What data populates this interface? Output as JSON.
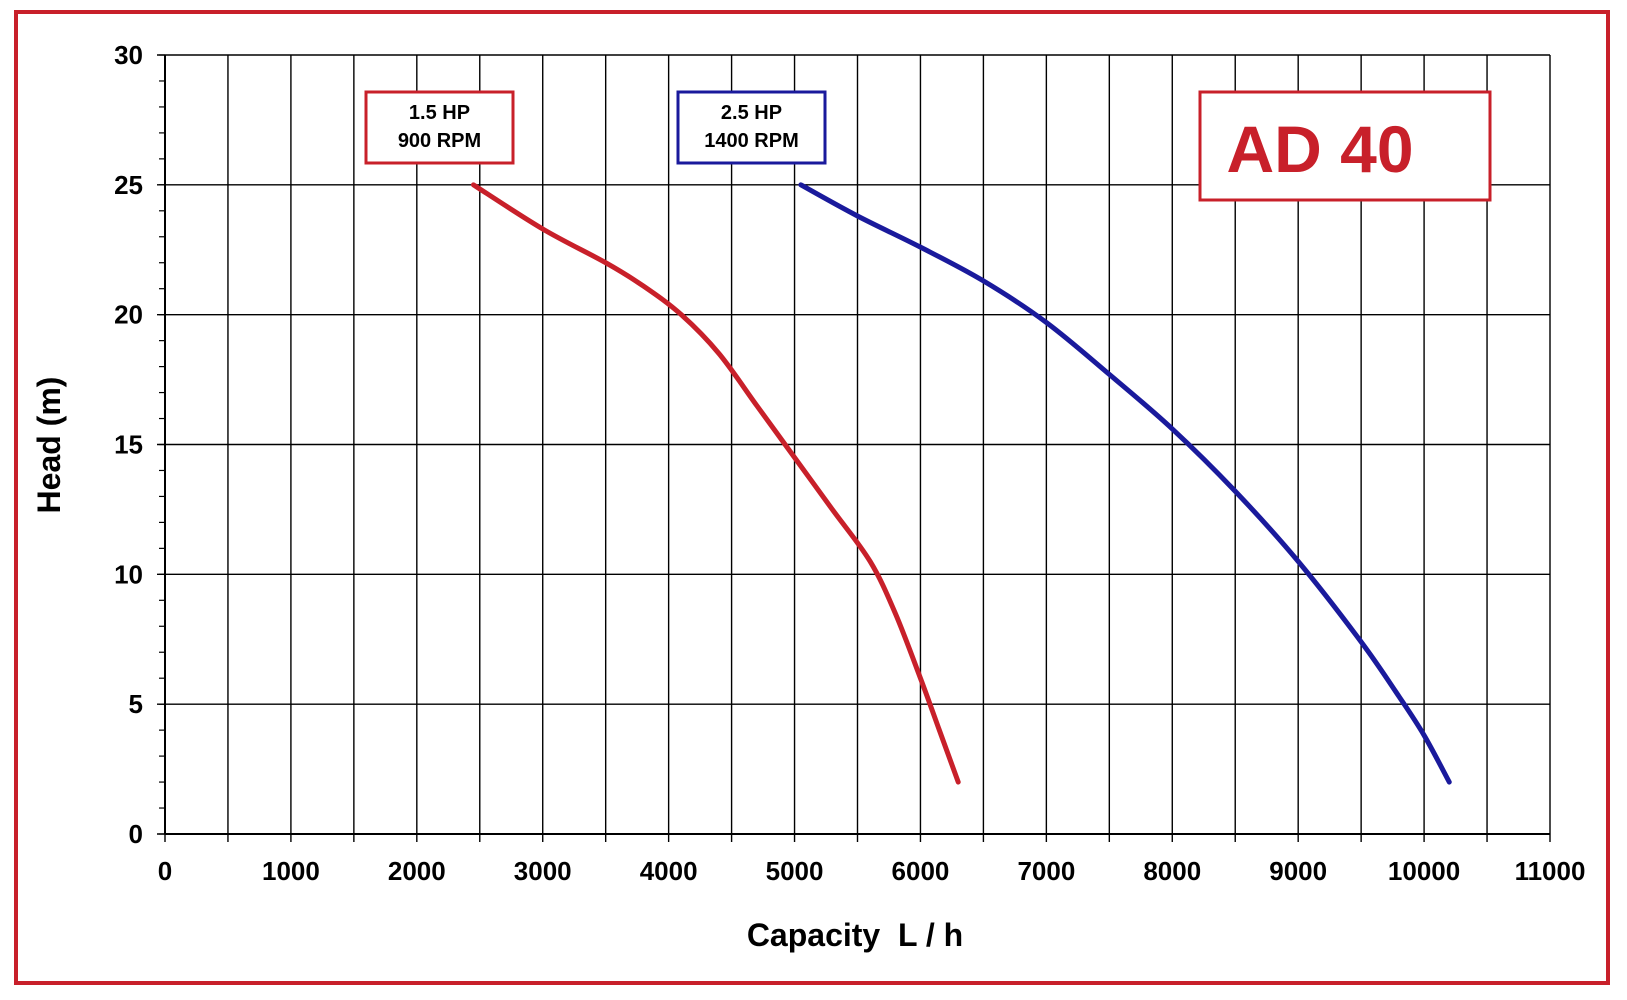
{
  "chart_data": {
    "type": "line",
    "title": "AD 40",
    "xlabel": "Capacity  L / h",
    "ylabel": "Head (m)",
    "xlim": [
      0,
      11000
    ],
    "ylim": [
      0,
      30
    ],
    "x_ticks": [
      "0",
      "1000",
      "2000",
      "3000",
      "4000",
      "5000",
      "6000",
      "7000",
      "8000",
      "9000",
      "10000",
      "11000"
    ],
    "y_ticks": [
      "0",
      "5",
      "10",
      "15",
      "20",
      "25",
      "30"
    ],
    "grid": true,
    "series": [
      {
        "label_lines": [
          "1.5 HP",
          "900 RPM"
        ],
        "color": "#c8202a",
        "points": [
          [
            2450,
            25
          ],
          [
            3000,
            23.3
          ],
          [
            3500,
            22
          ],
          [
            3800,
            21.1
          ],
          [
            4100,
            20
          ],
          [
            4400,
            18.5
          ],
          [
            4700,
            16.5
          ],
          [
            5000,
            14.5
          ],
          [
            5300,
            12.5
          ],
          [
            5600,
            10.5
          ],
          [
            5800,
            8.5
          ],
          [
            6000,
            6
          ],
          [
            6150,
            4
          ],
          [
            6300,
            2
          ]
        ]
      },
      {
        "label_lines": [
          "2.5 HP",
          "1400 RPM"
        ],
        "color": "#1a1a9c",
        "points": [
          [
            5050,
            25
          ],
          [
            5500,
            23.8
          ],
          [
            6000,
            22.6
          ],
          [
            6500,
            21.3
          ],
          [
            7000,
            19.7
          ],
          [
            7500,
            17.7
          ],
          [
            8000,
            15.6
          ],
          [
            8500,
            13.2
          ],
          [
            9000,
            10.5
          ],
          [
            9500,
            7.4
          ],
          [
            9800,
            5.3
          ],
          [
            10000,
            3.8
          ],
          [
            10200,
            2
          ]
        ]
      }
    ],
    "colors": {
      "frame": "#c8202a",
      "badge_text": "#c8202a",
      "grid": "#000000"
    }
  }
}
